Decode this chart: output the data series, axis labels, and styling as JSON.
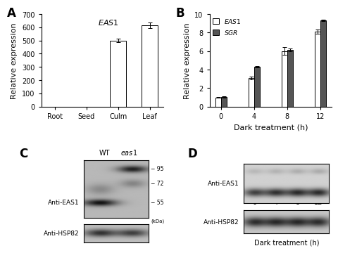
{
  "panel_A": {
    "categories": [
      "Root",
      "Seed",
      "Culm",
      "Leaf"
    ],
    "values": [
      0,
      0,
      500,
      615
    ],
    "errors": [
      0,
      0,
      15,
      20
    ],
    "ylabel": "Relative expression",
    "ylim": [
      0,
      700
    ],
    "yticks": [
      0,
      100,
      200,
      300,
      400,
      500,
      600,
      700
    ],
    "label": "EAS1",
    "bar_color": "white",
    "bar_edgecolor": "black"
  },
  "panel_B": {
    "x": [
      0,
      4,
      8,
      12
    ],
    "EAS1_values": [
      1.0,
      3.1,
      6.0,
      8.1
    ],
    "EAS1_errors": [
      0.05,
      0.15,
      0.4,
      0.2
    ],
    "SGR_values": [
      1.05,
      4.3,
      6.1,
      9.3
    ],
    "SGR_errors": [
      0.05,
      0.1,
      0.15,
      0.1
    ],
    "ylabel": "Relative expression",
    "xlabel": "Dark treatment (h)",
    "ylim": [
      0,
      10
    ],
    "yticks": [
      0,
      2,
      4,
      6,
      8,
      10
    ],
    "xticks": [
      0,
      4,
      8,
      12
    ],
    "EAS1_color": "white",
    "SGR_color": "#555555",
    "bar_edgecolor": "black"
  },
  "panel_C": {
    "col_headers": [
      "WT",
      "eas1"
    ],
    "mw_markers": [
      95,
      72,
      55
    ],
    "mw_label": "(kDa)",
    "label1": "Anti-EAS1",
    "label2": "Anti-HSP82"
  },
  "panel_D": {
    "time_points": [
      "0",
      "4",
      "8",
      "12"
    ],
    "xlabel": "Dark treatment (h)",
    "label1": "Anti-EAS1",
    "label2": "Anti-HSP82"
  },
  "background_color": "white",
  "label_fontsize": 8,
  "tick_fontsize": 7,
  "panel_label_fontsize": 12
}
